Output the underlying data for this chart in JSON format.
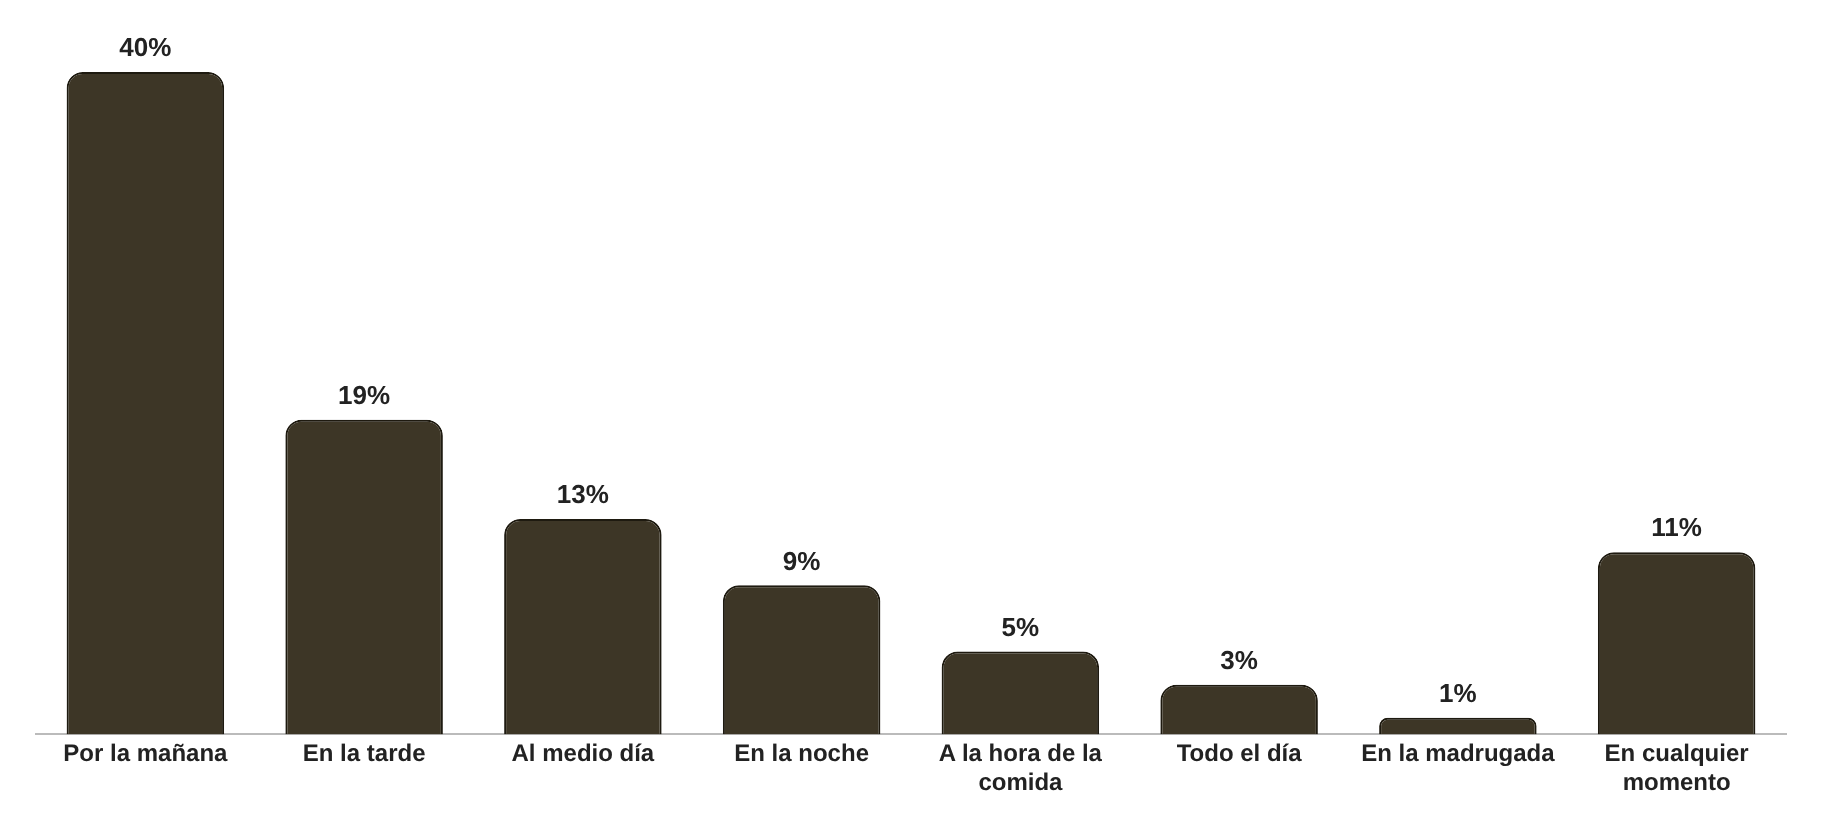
{
  "chart_data": {
    "type": "bar",
    "categories": [
      "Por la mañana",
      "En la tarde",
      "Al medio día",
      "En la noche",
      "A la hora de la comida",
      "Todo el día",
      "En la madrugada",
      "En cualquier momento"
    ],
    "values": [
      40,
      19,
      13,
      9,
      5,
      3,
      1,
      11
    ],
    "value_labels": [
      "40%",
      "19%",
      "13%",
      "9%",
      "5%",
      "3%",
      "1%",
      "11%"
    ],
    "color": "#3d3626",
    "grid": false,
    "legend": false
  }
}
